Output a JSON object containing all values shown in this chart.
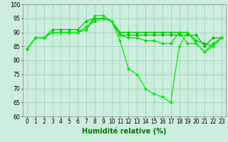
{
  "series": [
    {
      "x": [
        0,
        1,
        2,
        3,
        4,
        5,
        6,
        7,
        8,
        9,
        10,
        11,
        12,
        13,
        14,
        15,
        16,
        17,
        18,
        19,
        20,
        21,
        22,
        23
      ],
      "y": [
        84,
        88,
        88,
        90,
        90,
        90,
        90,
        91,
        95,
        95,
        94,
        89,
        89,
        89,
        89,
        89,
        89,
        89,
        89,
        89,
        89,
        85,
        88,
        88
      ],
      "color": "#00bb00",
      "marker": "D",
      "markersize": 2,
      "linewidth": 0.9
    },
    {
      "x": [
        0,
        1,
        2,
        3,
        4,
        5,
        6,
        7,
        8,
        9,
        10,
        11,
        12,
        13,
        14,
        15,
        16,
        17,
        18,
        19,
        20,
        21,
        22,
        23
      ],
      "y": [
        84,
        88,
        88,
        91,
        91,
        91,
        91,
        94,
        95,
        95,
        94,
        90,
        90,
        90,
        90,
        90,
        90,
        90,
        90,
        90,
        87,
        86,
        85,
        88
      ],
      "color": "#00cc00",
      "marker": "D",
      "markersize": 2,
      "linewidth": 0.9
    },
    {
      "x": [
        0,
        1,
        2,
        3,
        4,
        5,
        6,
        7,
        8,
        9,
        10,
        11,
        12,
        13,
        14,
        15,
        16,
        17,
        18,
        19,
        20,
        21,
        22,
        23
      ],
      "y": [
        84,
        88,
        88,
        90,
        90,
        90,
        90,
        92,
        94,
        95,
        94,
        89,
        88,
        88,
        87,
        87,
        86,
        86,
        90,
        86,
        86,
        83,
        86,
        88
      ],
      "color": "#00dd00",
      "marker": "D",
      "markersize": 2,
      "linewidth": 0.9
    },
    {
      "x": [
        0,
        1,
        2,
        3,
        4,
        5,
        6,
        7,
        8,
        9,
        10,
        11,
        12,
        13,
        14,
        15,
        16,
        17,
        18,
        19,
        20,
        21,
        22,
        23
      ],
      "y": [
        84,
        88,
        88,
        90,
        90,
        90,
        90,
        91,
        96,
        96,
        94,
        87,
        77,
        75,
        70,
        68,
        67,
        65,
        85,
        90,
        86,
        83,
        85,
        88
      ],
      "color": "#00ee00",
      "marker": "D",
      "markersize": 2,
      "linewidth": 0.9
    }
  ],
  "xlabel": "Humidité relative (%)",
  "xlabel_fontsize": 7,
  "xlabel_color": "#007700",
  "ylim": [
    60,
    100
  ],
  "xlim": [
    -0.5,
    23.5
  ],
  "yticks": [
    60,
    65,
    70,
    75,
    80,
    85,
    90,
    95,
    100
  ],
  "xticks": [
    0,
    1,
    2,
    3,
    4,
    5,
    6,
    7,
    8,
    9,
    10,
    11,
    12,
    13,
    14,
    15,
    16,
    17,
    18,
    19,
    20,
    21,
    22,
    23
  ],
  "grid_color": "#99ccbb",
  "background_color": "#cceedd",
  "tick_fontsize": 5.5,
  "tick_color": "#000000"
}
